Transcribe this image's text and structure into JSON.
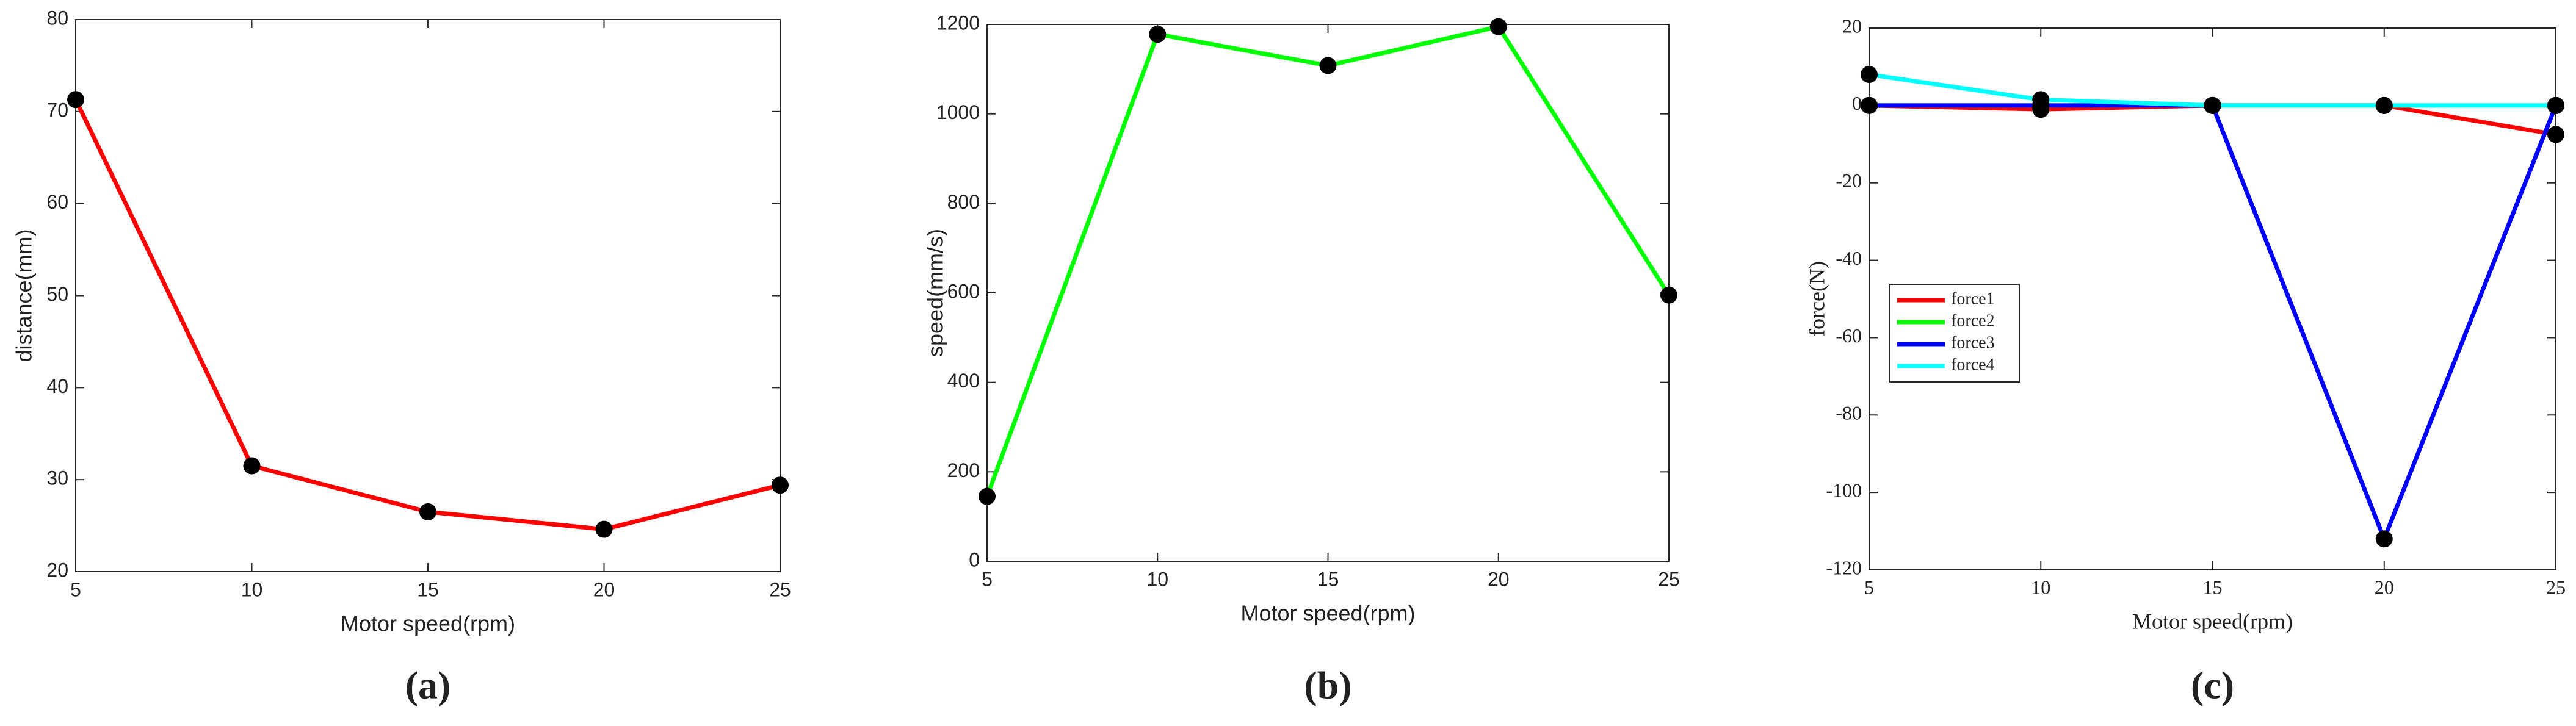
{
  "chart_data": [
    {
      "type": "line",
      "caption": "(a)",
      "xlabel": "Motor speed(rpm)",
      "ylabel": "distance(mm)",
      "x": [
        5,
        10,
        15,
        20,
        25
      ],
      "values": [
        71.3,
        31.5,
        26.5,
        24.6,
        29.4
      ],
      "color": "#ff0000",
      "marker_color": "#000000",
      "xlim": [
        5,
        25
      ],
      "xticks": [
        5,
        10,
        15,
        20,
        25
      ],
      "ylim": [
        20,
        80
      ],
      "yticks": [
        20,
        30,
        40,
        50,
        60,
        70,
        80
      ]
    },
    {
      "type": "line",
      "caption": "(b)",
      "xlabel": "Motor speed(rpm)",
      "ylabel": "speed(mm/s)",
      "x": [
        5,
        10,
        15,
        20,
        25
      ],
      "values": [
        145,
        1178,
        1108,
        1195,
        595
      ],
      "color": "#00ff00",
      "marker_color": "#000000",
      "xlim": [
        5,
        25
      ],
      "xticks": [
        5,
        10,
        15,
        20,
        25
      ],
      "ylim": [
        0,
        1200
      ],
      "yticks": [
        0,
        200,
        400,
        600,
        800,
        1000,
        1200
      ]
    },
    {
      "type": "line",
      "caption": "(c)",
      "xlabel": "Motor speed(rpm)",
      "ylabel": "force(N)",
      "x": [
        5,
        10,
        15,
        20,
        25
      ],
      "series": [
        {
          "name": "force1",
          "color": "#ff0000",
          "values": [
            0,
            -1,
            0,
            0,
            -7.5
          ]
        },
        {
          "name": "force2",
          "color": "#00ff00",
          "values": [
            0,
            0,
            0,
            0,
            0
          ]
        },
        {
          "name": "force3",
          "color": "#0000ff",
          "values": [
            0,
            0,
            0,
            -112,
            0
          ]
        },
        {
          "name": "force4",
          "color": "#00ffff",
          "values": [
            8,
            1.5,
            0,
            0,
            0
          ]
        }
      ],
      "marker_color": "#000000",
      "legend": "center left",
      "xlim": [
        5,
        25
      ],
      "xticks": [
        5,
        10,
        15,
        20,
        25
      ],
      "ylim": [
        -120,
        20
      ],
      "yticks": [
        -120,
        -100,
        -80,
        -60,
        -40,
        -20,
        0,
        20
      ]
    }
  ]
}
